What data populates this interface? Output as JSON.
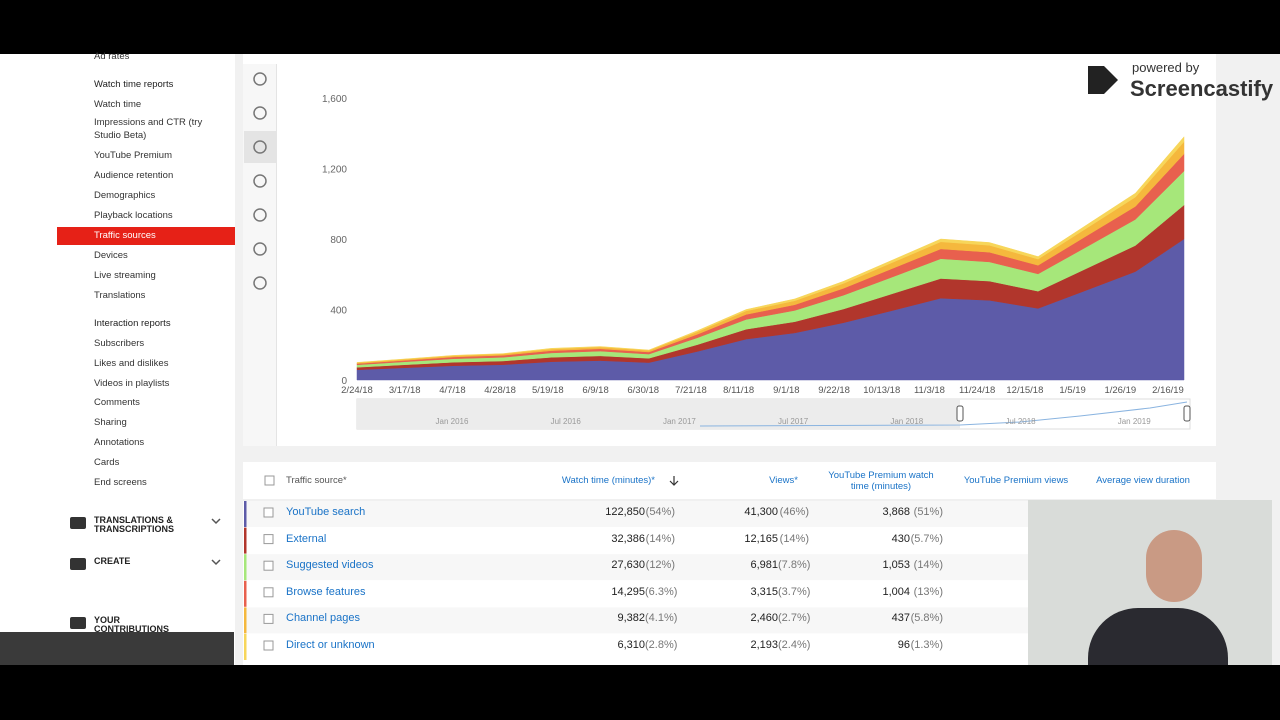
{
  "sidebar": {
    "items": [
      "Ad rates",
      "Watch time reports",
      "Watch time",
      "Impressions and CTR (try Studio Beta)",
      "YouTube Premium",
      "Audience retention",
      "Demographics",
      "Playback locations",
      "Traffic sources",
      "Devices",
      "Live streaming",
      "Translations",
      "Interaction reports",
      "Subscribers",
      "Likes and dislikes",
      "Videos in playlists",
      "Comments",
      "Sharing",
      "Annotations",
      "Cards",
      "End screens"
    ],
    "sections": [
      "TRANSLATIONS & TRANSCRIPTIONS",
      "CREATE",
      "YOUR CONTRIBUTIONS"
    ]
  },
  "watermark": {
    "small": "powered by",
    "brand": "Screencastify"
  },
  "chart_data": {
    "type": "stacked-area",
    "categories": [
      "2/24/18",
      "3/17/18",
      "4/7/18",
      "4/28/18",
      "5/19/18",
      "6/9/18",
      "6/30/18",
      "7/21/18",
      "8/11/18",
      "9/1/18",
      "9/22/18",
      "10/13/18",
      "11/3/18",
      "11/24/18",
      "12/15/18",
      "1/5/19",
      "1/26/19",
      "2/16/19"
    ],
    "series": [
      {
        "name": "YouTube search",
        "color": "#5d5ba8",
        "values": [
          58,
          70,
          81,
          87,
          104,
          110,
          99,
          162,
          232,
          267,
          325,
          394,
          464,
          452,
          406,
          510,
          615,
          800
        ]
      },
      {
        "name": "External",
        "color": "#b1362c",
        "values": [
          14,
          17,
          20,
          21,
          25,
          27,
          24,
          39,
          56,
          64,
          78,
          95,
          112,
          109,
          98,
          123,
          148,
          193
        ]
      },
      {
        "name": "Suggested videos",
        "color": "#a6e77a",
        "values": [
          14,
          17,
          20,
          21,
          25,
          27,
          24,
          39,
          56,
          64,
          78,
          95,
          112,
          109,
          98,
          123,
          148,
          193
        ]
      },
      {
        "name": "Browse features",
        "color": "#e8604e",
        "values": [
          7,
          8,
          10,
          11,
          13,
          13,
          12,
          20,
          28,
          32,
          39,
          48,
          56,
          55,
          49,
          62,
          74,
          97
        ]
      },
      {
        "name": "Channel pages",
        "color": "#f5b83d",
        "values": [
          5,
          6,
          7,
          8,
          9,
          10,
          9,
          14,
          20,
          23,
          28,
          34,
          40,
          39,
          35,
          44,
          53,
          69
        ]
      },
      {
        "name": "Direct or unknown",
        "color": "#f7d65a",
        "values": [
          2,
          2,
          2,
          2,
          4,
          3,
          2,
          6,
          8,
          10,
          12,
          14,
          16,
          16,
          14,
          18,
          22,
          28
        ]
      }
    ],
    "ylim": [
      0,
      1600
    ],
    "yticks": [
      0,
      400,
      800,
      {
        "value": 1200,
        "label": "1,200"
      },
      {
        "value": 1600,
        "label": "1,600"
      }
    ],
    "grid": false,
    "navigator_labels": [
      "Jan 2016",
      "Jul 2016",
      "Jan 2017",
      "Jul 2017",
      "Jan 2018",
      "Jul 2018",
      "Jan 2019"
    ]
  },
  "table": {
    "headers": [
      "Traffic source*",
      "Watch time (minutes)*",
      "Views*",
      "YouTube Premium watch time (minutes)",
      "YouTube Premium views",
      "Average view duration"
    ],
    "rows": [
      [
        "YouTube search",
        "122,850",
        "(54%)",
        "41,300",
        "(46%)",
        "3,868",
        "(51%)"
      ],
      [
        "External",
        "32,386",
        "(14%)",
        "12,165",
        "(14%)",
        "430",
        "(5.7%)"
      ],
      [
        "Suggested videos",
        "27,630",
        "(12%)",
        "6,981",
        "(7.8%)",
        "1,053",
        "(14%)"
      ],
      [
        "Browse features",
        "14,295",
        "(6.3%)",
        "3,315",
        "(3.7%)",
        "1,004",
        "(13%)"
      ],
      [
        "Channel pages",
        "9,382",
        "(4.1%)",
        "2,460",
        "(2.7%)",
        "437",
        "(5.8%)"
      ],
      [
        "Direct or unknown",
        "6,310",
        "(2.8%)",
        "2,193",
        "(2.4%)",
        "96",
        "(1.3%)"
      ]
    ]
  }
}
